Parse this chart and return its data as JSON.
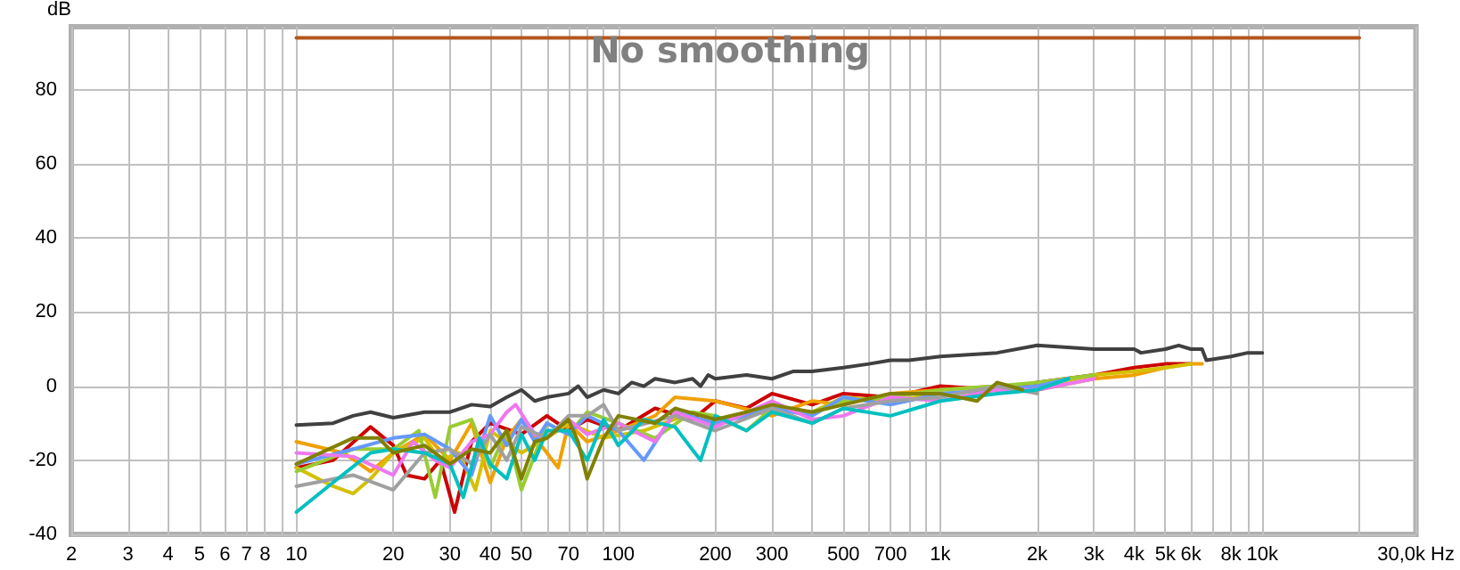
{
  "chart_data": {
    "type": "line",
    "title": "No smoothing",
    "ylabel": "dB",
    "log": "x",
    "grid": true,
    "marker": "none",
    "line_style": "solid",
    "xlim": [
      2,
      30000
    ],
    "ylim": [
      -40,
      97
    ],
    "xticks": [
      2,
      3,
      4,
      5,
      6,
      7,
      8,
      {
        "value": 9,
        "label": null
      },
      10,
      20,
      30,
      40,
      50,
      {
        "value": 60,
        "label": null
      },
      70,
      {
        "value": 80,
        "label": null
      },
      {
        "value": 90,
        "label": null
      },
      100,
      200,
      300,
      {
        "value": 400,
        "label": null
      },
      500,
      {
        "value": 600,
        "label": null
      },
      700,
      {
        "value": 800,
        "label": null
      },
      {
        "value": 900,
        "label": null
      },
      {
        "value": 1000,
        "label": "1k"
      },
      {
        "value": 2000,
        "label": "2k"
      },
      {
        "value": 3000,
        "label": "3k"
      },
      {
        "value": 4000,
        "label": "4k"
      },
      {
        "value": 5000,
        "label": "5k"
      },
      {
        "value": 6000,
        "label": "6k"
      },
      {
        "value": 7000,
        "label": null
      },
      {
        "value": 8000,
        "label": "8k"
      },
      {
        "value": 9000,
        "label": null
      },
      {
        "value": 10000,
        "label": "10k"
      },
      {
        "value": 20000,
        "label": null
      },
      {
        "value": 30000,
        "label": "30,0k Hz"
      }
    ],
    "yticks": [
      -40,
      -20,
      0,
      20,
      40,
      60,
      80
    ],
    "series": [
      {
        "color": "#b4561e",
        "x": [
          10,
          20000
        ],
        "values": [
          94,
          94
        ]
      },
      {
        "color": "#404040",
        "x": [
          10,
          13,
          15,
          17,
          20,
          25,
          30,
          35,
          40,
          45,
          50,
          55,
          60,
          70,
          75,
          80,
          90,
          100,
          110,
          120,
          130,
          150,
          170,
          180,
          190,
          200,
          250,
          300,
          350,
          400,
          500,
          600,
          700,
          800,
          1000,
          1500,
          2000,
          3000,
          4000,
          4200,
          5000,
          5500,
          6000,
          6500,
          6700,
          8000,
          9000,
          10000
        ],
        "values": [
          -10.5,
          -10,
          -8,
          -7,
          -8.5,
          -7,
          -7,
          -5,
          -5.5,
          -3,
          -1,
          -4,
          -3,
          -2,
          0,
          -3,
          -1,
          -2,
          1,
          0,
          2,
          1,
          2,
          0,
          3,
          2,
          3,
          2,
          4,
          4,
          5,
          6,
          7,
          7,
          8,
          9,
          11,
          10,
          10,
          9,
          10,
          11,
          10,
          10,
          7,
          8,
          9,
          9
        ]
      },
      {
        "color": "#cc0000",
        "x": [
          10,
          13,
          17,
          20,
          22,
          25,
          28,
          31,
          35,
          40,
          50,
          60,
          70,
          80,
          100,
          130,
          170,
          200,
          250,
          300,
          400,
          500,
          700,
          1000,
          1500,
          2000,
          3000,
          4000,
          5000,
          6000
        ],
        "values": [
          -22,
          -20,
          -11,
          -16,
          -24,
          -25,
          -20,
          -34,
          -15,
          -10,
          -13,
          -8,
          -12,
          -9,
          -12,
          -6,
          -9,
          -4,
          -6,
          -2,
          -5,
          -2,
          -3,
          0,
          -1,
          1,
          3,
          5,
          6,
          6
        ]
      },
      {
        "color": "#f0a000",
        "x": [
          10,
          14,
          17,
          20,
          25,
          30,
          35,
          40,
          45,
          50,
          60,
          65,
          70,
          80,
          100,
          130,
          150,
          200,
          300,
          400,
          500,
          700,
          1000,
          1500,
          2000,
          3000,
          4000,
          5000,
          6000,
          6500
        ],
        "values": [
          -15,
          -18,
          -23,
          -18,
          -13,
          -20,
          -10,
          -26,
          -14,
          -9,
          -18,
          -22,
          -10,
          -15,
          -12,
          -8,
          -3,
          -4,
          -8,
          -4,
          -5,
          -2,
          -1,
          0,
          -1,
          2,
          3,
          5,
          6,
          6
        ]
      },
      {
        "color": "#d4c000",
        "x": [
          10,
          13,
          15,
          17,
          20,
          25,
          28,
          32,
          36,
          40,
          50,
          60,
          70,
          90,
          120,
          160,
          200,
          300,
          400,
          500,
          700,
          1000,
          1500,
          2000,
          3000,
          4000,
          5000,
          6000
        ],
        "values": [
          -22,
          -27,
          -29,
          -25,
          -18,
          -14,
          -20,
          -18,
          -28,
          -12,
          -18,
          -14,
          -10,
          -14,
          -12,
          -8,
          -10,
          -6,
          -7,
          -3,
          -4,
          -2,
          -1,
          0,
          3,
          4,
          5,
          6
        ]
      },
      {
        "color": "#99cc33",
        "x": [
          10,
          15,
          20,
          24,
          27,
          30,
          35,
          40,
          45,
          50,
          60,
          70,
          80,
          100,
          130,
          170,
          200,
          250,
          300,
          400,
          500,
          700,
          1000,
          1500,
          2000,
          3000
        ],
        "values": [
          -23,
          -17,
          -17,
          -12,
          -30,
          -11,
          -9,
          -22,
          -12,
          -28,
          -10,
          -13,
          -7,
          -10,
          -14,
          -7,
          -8,
          -12,
          -6,
          -7,
          -4,
          -3,
          -1,
          0,
          1,
          3
        ]
      },
      {
        "color": "#6699ff",
        "x": [
          10,
          15,
          20,
          25,
          30,
          35,
          40,
          45,
          50,
          55,
          60,
          70,
          80,
          100,
          120,
          150,
          200,
          250,
          300,
          400,
          500,
          700,
          1000,
          1500,
          2000,
          2500
        ],
        "values": [
          -21,
          -17,
          -14,
          -13,
          -17,
          -24,
          -8,
          -16,
          -9,
          -15,
          -10,
          -13,
          -8,
          -12,
          -20,
          -7,
          -10,
          -8,
          -6,
          -8,
          -3,
          -5,
          -2,
          -1,
          0,
          2
        ]
      },
      {
        "color": "#ee77ee",
        "x": [
          10,
          15,
          20,
          23,
          27,
          30,
          35,
          40,
          45,
          48,
          55,
          60,
          70,
          80,
          100,
          130,
          150,
          200,
          300,
          400,
          500,
          700,
          1000,
          1500,
          2000,
          3000
        ],
        "values": [
          -18,
          -19,
          -24,
          -15,
          -20,
          -22,
          -15,
          -13,
          -7,
          -5,
          -13,
          -14,
          -9,
          -13,
          -10,
          -15,
          -7,
          -11,
          -4,
          -9,
          -8,
          -3,
          -4,
          -1,
          -1,
          2
        ]
      },
      {
        "color": "#a0a0a0",
        "x": [
          10,
          15,
          20,
          25,
          30,
          35,
          40,
          45,
          50,
          60,
          70,
          80,
          90,
          100,
          150,
          200,
          300,
          400,
          500,
          700,
          1000,
          1500,
          2000
        ],
        "values": [
          -27,
          -24,
          -28,
          -18,
          -17,
          -21,
          -13,
          -20,
          -11,
          -14,
          -8,
          -8,
          -5,
          -12,
          -8,
          -12,
          -6,
          -10,
          -6,
          -4,
          -3,
          0,
          -2
        ]
      },
      {
        "color": "#00c0c0",
        "x": [
          10,
          13,
          17,
          20,
          25,
          30,
          33,
          37,
          40,
          45,
          50,
          55,
          60,
          70,
          80,
          90,
          100,
          120,
          150,
          180,
          200,
          250,
          300,
          400,
          500,
          700,
          1000,
          1500,
          2000,
          2500
        ],
        "values": [
          -34,
          -26,
          -18,
          -17,
          -18,
          -21,
          -30,
          -14,
          -21,
          -25,
          -13,
          -20,
          -12,
          -12,
          -20,
          -9,
          -16,
          -9,
          -11,
          -20,
          -8,
          -12,
          -7,
          -10,
          -6,
          -8,
          -4,
          -2,
          -1,
          2
        ]
      },
      {
        "color": "#808000",
        "x": [
          10,
          15,
          18,
          20,
          25,
          30,
          35,
          40,
          45,
          50,
          55,
          60,
          70,
          75,
          80,
          90,
          100,
          130,
          150,
          200,
          250,
          300,
          400,
          500,
          700,
          1000,
          1300,
          1500,
          1800
        ],
        "values": [
          -21,
          -14,
          -14,
          -18,
          -16,
          -21,
          -17,
          -18,
          -12,
          -25,
          -15,
          -14,
          -9,
          -15,
          -25,
          -14,
          -8,
          -10,
          -6,
          -9,
          -7,
          -5,
          -7,
          -5,
          -2,
          -2,
          -4,
          1,
          -1
        ]
      }
    ]
  }
}
